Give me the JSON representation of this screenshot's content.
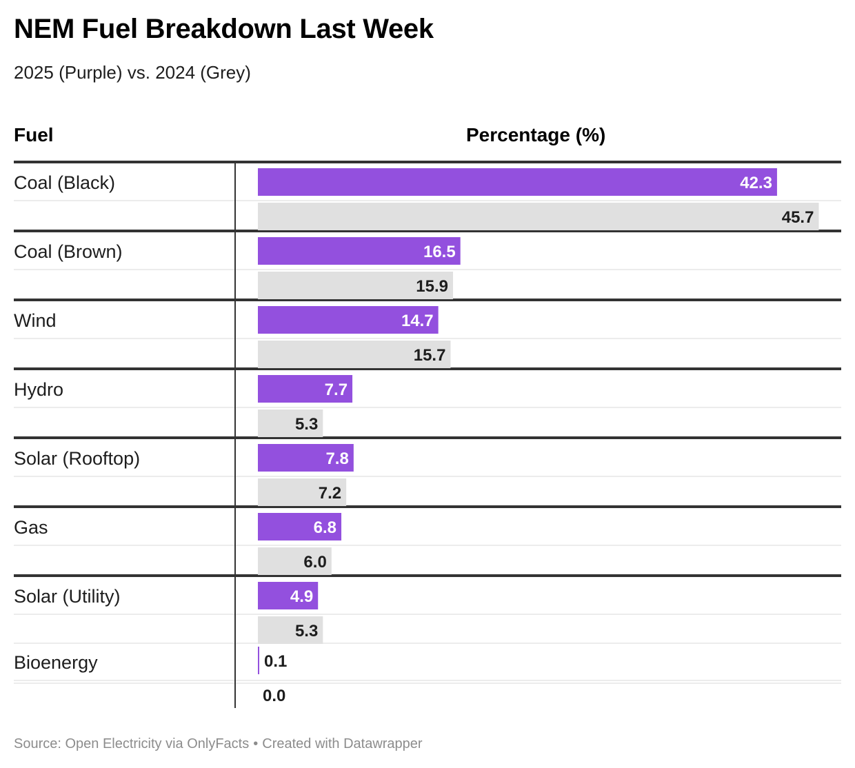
{
  "title": "NEM Fuel Breakdown Last Week",
  "subtitle": "2025 (Purple) vs. 2024 (Grey)",
  "columns": {
    "fuel": "Fuel",
    "percentage": "Percentage (%)"
  },
  "footer": {
    "source": "Source: Open Electricity via OnlyFacts",
    "separator": "•",
    "credit": "Created with Datawrapper"
  },
  "colors": {
    "series_2025": "#9350de",
    "series_2024": "#e0e0e0",
    "label_on_purple": "#ffffff",
    "label_on_grey": "#1d1d1d",
    "rule_thick": "#333333",
    "rule_thin": "#e6e6e6"
  },
  "chart_data": {
    "type": "bar",
    "orientation": "horizontal",
    "categories": [
      "Coal (Black)",
      "Coal (Brown)",
      "Wind",
      "Hydro",
      "Solar (Rooftop)",
      "Gas",
      "Solar (Utility)",
      "Bioenergy"
    ],
    "series": [
      {
        "name": "2025",
        "color": "#9350de",
        "values": [
          42.3,
          16.5,
          14.7,
          7.7,
          7.8,
          6.8,
          4.9,
          0.1
        ],
        "labels": [
          "42.3",
          "16.5",
          "14.7",
          "7.7",
          "7.8",
          "6.8",
          "4.9",
          "0.1"
        ]
      },
      {
        "name": "2024",
        "color": "#e0e0e0",
        "values": [
          45.7,
          15.9,
          15.7,
          5.3,
          7.2,
          6.0,
          5.3,
          0.0
        ],
        "labels": [
          "45.7",
          "15.9",
          "15.7",
          "5.3",
          "7.2",
          "6.0",
          "5.3",
          "0.0"
        ]
      }
    ],
    "xlim": [
      0,
      48
    ],
    "xlabel": "Percentage (%)",
    "ylabel": "Fuel",
    "grid": false,
    "legend": "none"
  }
}
